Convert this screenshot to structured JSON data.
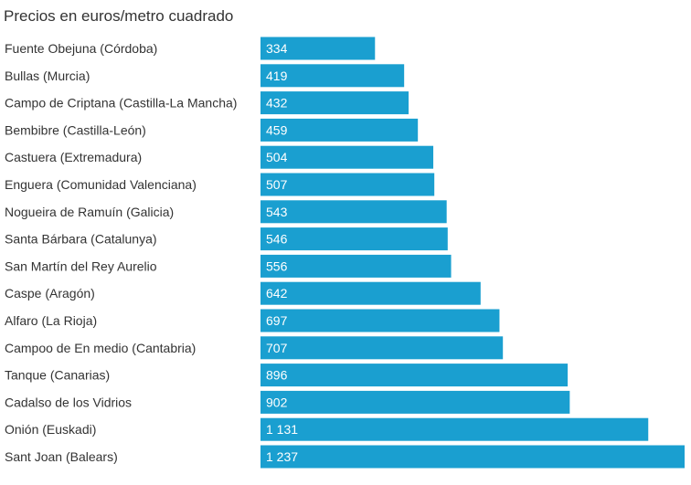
{
  "chart_data": {
    "type": "bar",
    "orientation": "horizontal",
    "title": "Precios en euros/metro cuadrado",
    "categories": [
      "Fuente Obejuna (Córdoba)",
      "Bullas (Murcia)",
      "Campo de Criptana (Castilla-La Mancha)",
      "Bembibre (Castilla-León)",
      "Castuera (Extremadura)",
      "Enguera (Comunidad Valenciana)",
      "Nogueira de Ramuín (Galicia)",
      "Santa Bárbara (Catalunya)",
      "San Martín del Rey Aurelio",
      "Caspe (Aragón)",
      "Alfaro (La Rioja)",
      "Campoo de En medio (Cantabria)",
      "Tanque (Canarias)",
      "Cadalso de los Vidrios",
      "Onión (Euskadi)",
      "Sant Joan (Balears)"
    ],
    "values": [
      334,
      419,
      432,
      459,
      504,
      507,
      543,
      546,
      556,
      642,
      697,
      707,
      896,
      902,
      1131,
      1237
    ],
    "value_labels": [
      "334",
      "419",
      "432",
      "459",
      "504",
      "507",
      "543",
      "546",
      "556",
      "642",
      "697",
      "707",
      "896",
      "902",
      "1 131",
      "1 237"
    ],
    "xlim": [
      0,
      1237
    ],
    "grid": false,
    "legend": "none",
    "bar_color": "#1a9fd0"
  }
}
